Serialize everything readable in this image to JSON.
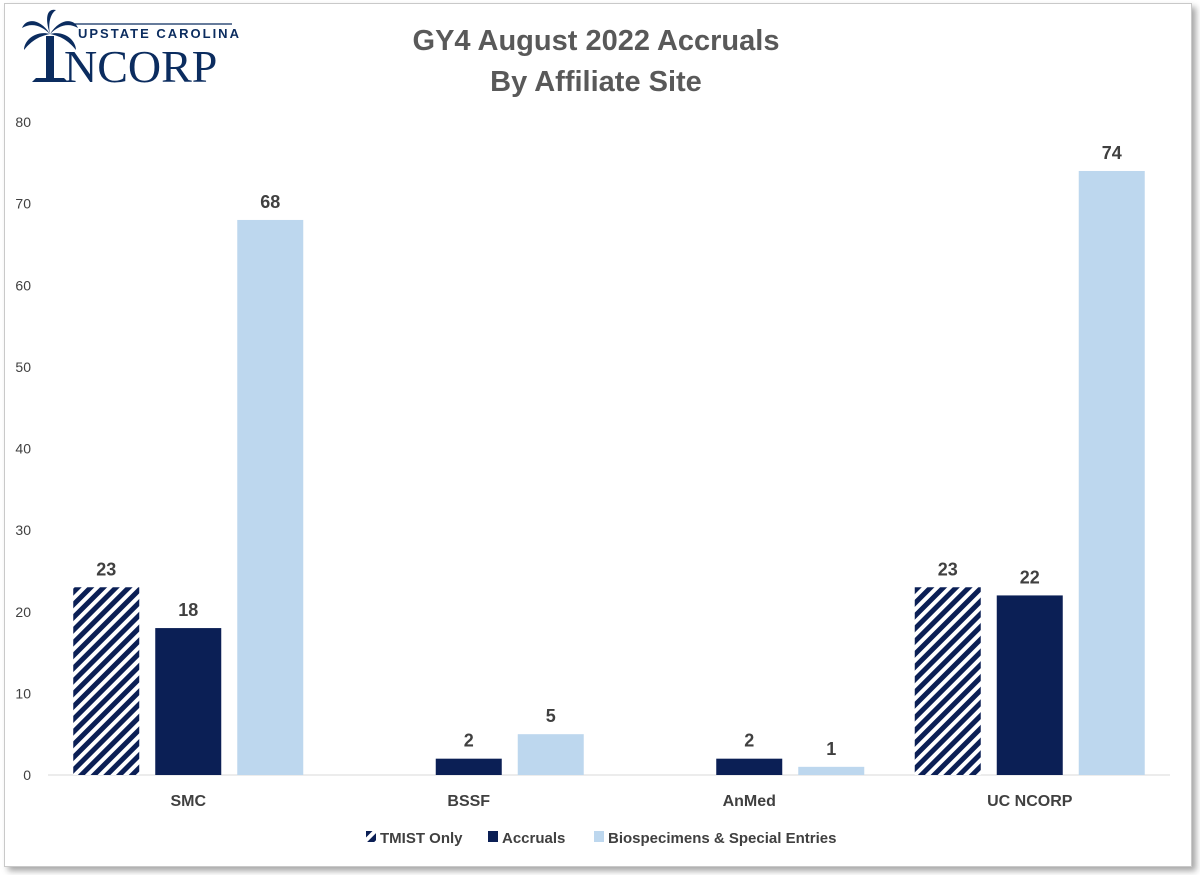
{
  "logo": {
    "top_text": "UPSTATE CAROLINA",
    "main_text": "NCORP",
    "icon": "palmetto-tree-icon"
  },
  "chart_data": {
    "type": "bar",
    "title_line1": "GY4 August 2022 Accruals",
    "title_line2": "By Affiliate Site",
    "categories": [
      "SMC",
      "BSSF",
      "AnMed",
      "UC NCORP"
    ],
    "series": [
      {
        "name": "TMIST Only",
        "values": [
          23,
          null,
          null,
          23
        ],
        "color": "#0b1f55",
        "pattern": "diagonal-stripe"
      },
      {
        "name": "Accruals",
        "values": [
          18,
          2,
          2,
          22
        ],
        "color": "#0b1f55",
        "pattern": "solid"
      },
      {
        "name": "Biospecimens & Special Entries",
        "values": [
          68,
          5,
          1,
          74
        ],
        "color": "#bdd7ee",
        "pattern": "solid"
      }
    ],
    "yticks": [
      "0",
      "10",
      "20",
      "30",
      "40",
      "50",
      "60",
      "70",
      "80"
    ],
    "ylim": [
      0,
      80
    ],
    "grid": false,
    "legend_position": "bottom",
    "xlabel": "",
    "ylabel": ""
  }
}
